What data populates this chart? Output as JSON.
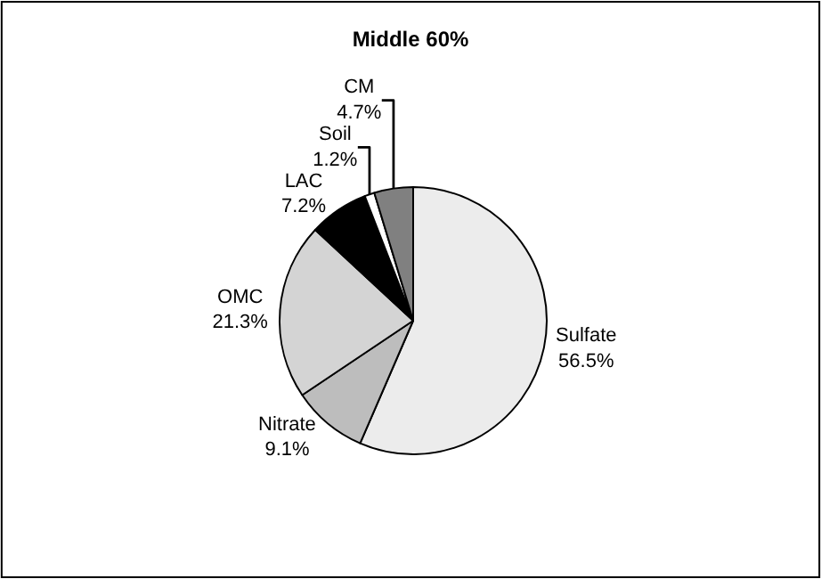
{
  "chart_data": {
    "type": "pie",
    "title": "Middle 60%",
    "categories": [
      "Sulfate",
      "Nitrate",
      "OMC",
      "LAC",
      "Soil",
      "CM"
    ],
    "values": [
      56.5,
      9.1,
      21.3,
      7.2,
      1.2,
      4.7
    ],
    "value_labels": [
      "56.5%",
      "9.1%",
      "21.3%",
      "7.2%",
      "1.2%",
      "4.7%"
    ],
    "colors": [
      "#ececec",
      "#bdbdbd",
      "#d4d4d4",
      "#000000",
      "#ffffff",
      "#808080"
    ],
    "legend": false
  }
}
